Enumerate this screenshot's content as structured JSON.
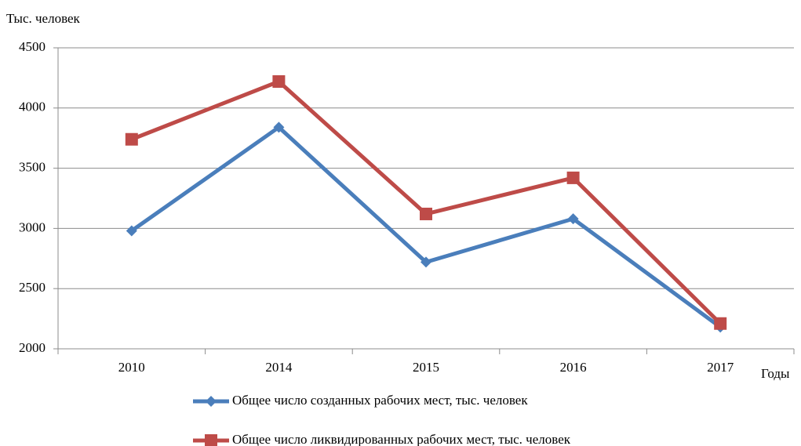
{
  "chart_data": {
    "type": "line",
    "y_axis_label": "Тыс. человек",
    "x_axis_label": "Годы",
    "categories": [
      "2010",
      "2014",
      "2015",
      "2016",
      "2017"
    ],
    "series": [
      {
        "name": "Общее число созданных рабочих мест, тыс. человек",
        "color": "#4a7ebb",
        "marker": "diamond",
        "values": [
          2980,
          3840,
          2720,
          3080,
          2180
        ]
      },
      {
        "name": "Общее число ликвидированных рабочих мест, тыс. человек",
        "color": "#be4b48",
        "marker": "square",
        "values": [
          3740,
          4220,
          3120,
          3420,
          2210
        ]
      }
    ],
    "ylim": [
      2000,
      4500
    ],
    "yticks": [
      2000,
      2500,
      3000,
      3500,
      4000,
      4500
    ],
    "grid": true
  }
}
